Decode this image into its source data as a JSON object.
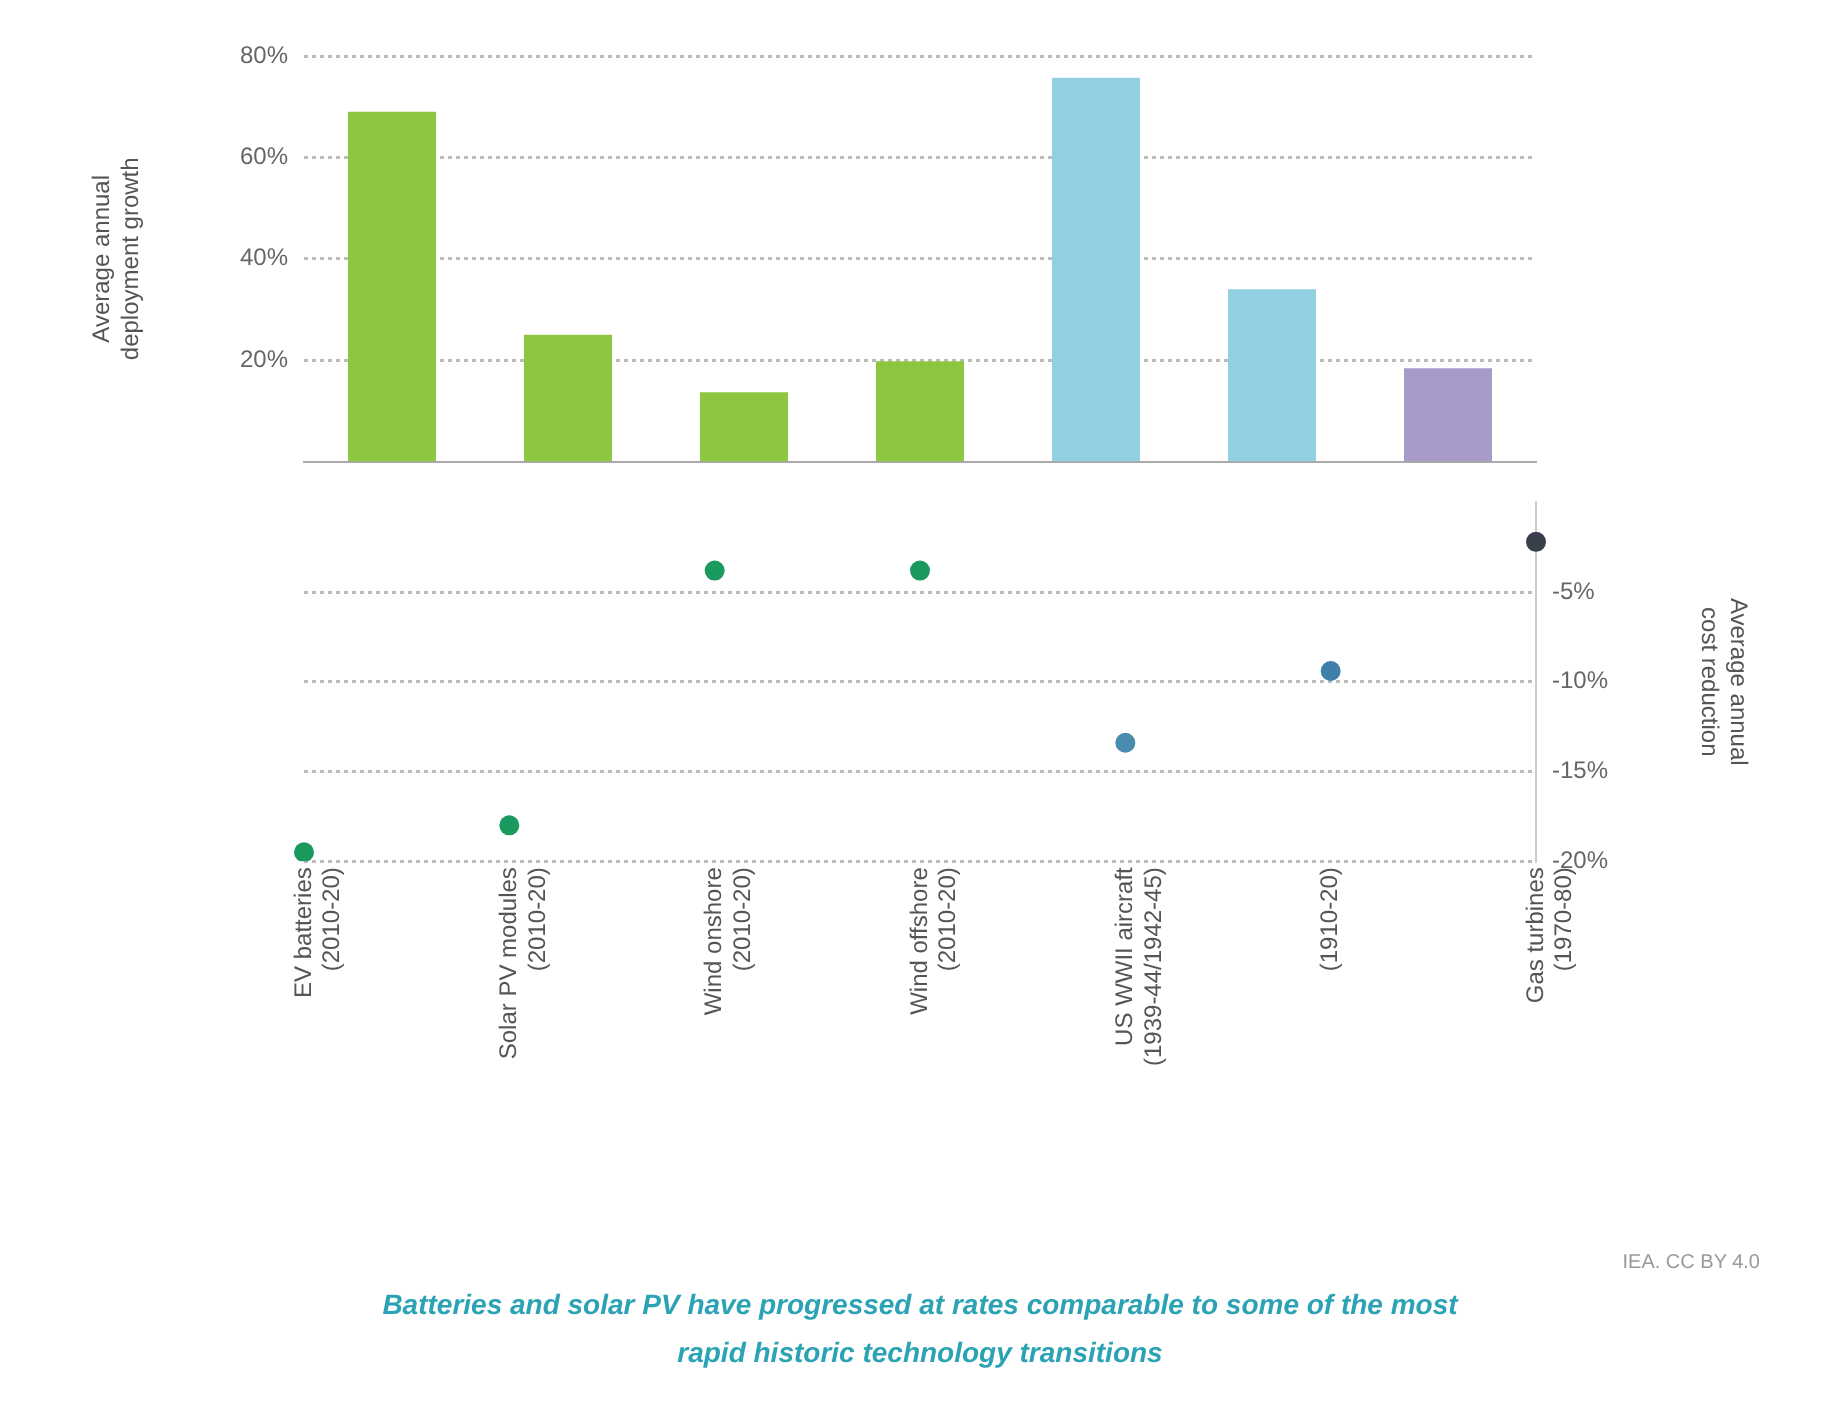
{
  "chart_data": [
    {
      "type": "bar",
      "ylabel": "Average annual deployment growth",
      "categories": [
        null,
        null,
        null,
        null,
        null,
        null,
        null
      ],
      "values": [
        69,
        25,
        13.7,
        19.8,
        75.7,
        34,
        18.4
      ],
      "colors": [
        "#8dc63f",
        "#8dc63f",
        "#8dc63f",
        "#8dc63f",
        "#92cfe0",
        "#92cfe0",
        "#a99bc9"
      ],
      "ylim": [
        0,
        80
      ],
      "yticks": [
        {
          "value": 20,
          "label": "20%"
        },
        {
          "value": 40,
          "label": "40%"
        },
        {
          "value": 60,
          "label": "60%"
        },
        {
          "value": 80,
          "label": "80%"
        }
      ],
      "grid": "y"
    },
    {
      "type": "scatter",
      "ylabel": "Average annual cost reduction",
      "categories": [
        "EV batteries (2010-20)",
        "Solar PV modules (2010-20)",
        "Wind onshore (2010-20)",
        "Wind offshore (2010-20)",
        "US WWII aircraft (1939-44/1942-45)",
        "(1910-20)",
        "Gas turbines (1970-80)"
      ],
      "values": [
        -19.5,
        -18,
        -3.8,
        -3.8,
        -13.4,
        -9.4,
        -2.2
      ],
      "colors": [
        "#1a9a5e",
        "#1a9a5e",
        "#1a9a5e",
        "#1a9a5e",
        "#4a8bb0",
        "#3f7fab",
        "#3b3f4c"
      ],
      "ylim": [
        -20,
        0
      ],
      "yticks": [
        {
          "value": -5,
          "label": "-5%"
        },
        {
          "value": -10,
          "label": "-10%"
        },
        {
          "value": -15,
          "label": "-15%"
        },
        {
          "value": -20,
          "label": "-20%"
        }
      ],
      "grid": "y",
      "marker": "circle",
      "annotations": [
        "IEA. CC BY 4.0",
        "Batteries and solar PV have progressed at rates comparable to some of the most rapid historic technology transitions"
      ]
    }
  ]
}
